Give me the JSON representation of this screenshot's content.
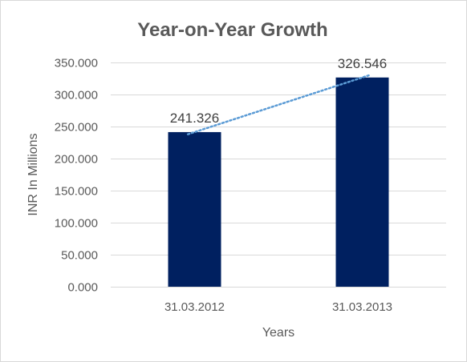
{
  "chart_data": {
    "type": "bar",
    "title": "Year-on-Year Growth",
    "xlabel": "Years",
    "ylabel": "INR In Millions",
    "categories": [
      "31.03.2012",
      "31.03.2013"
    ],
    "values": [
      241.326,
      326.546
    ],
    "data_labels": [
      "241.326",
      "326.546"
    ],
    "ylim": [
      0,
      350
    ],
    "yticks": [
      0,
      50,
      100,
      150,
      200,
      250,
      300,
      350
    ],
    "ytick_labels": [
      "0.000",
      "50.000",
      "100.000",
      "150.000",
      "200.000",
      "250.000",
      "300.000",
      "350.000"
    ],
    "grid": true,
    "legend": "none",
    "trendline": "linear, dotted",
    "colors": {
      "bar": "#002060",
      "trendline": "#5B9BD5",
      "grid": "#d9d9d9"
    }
  }
}
